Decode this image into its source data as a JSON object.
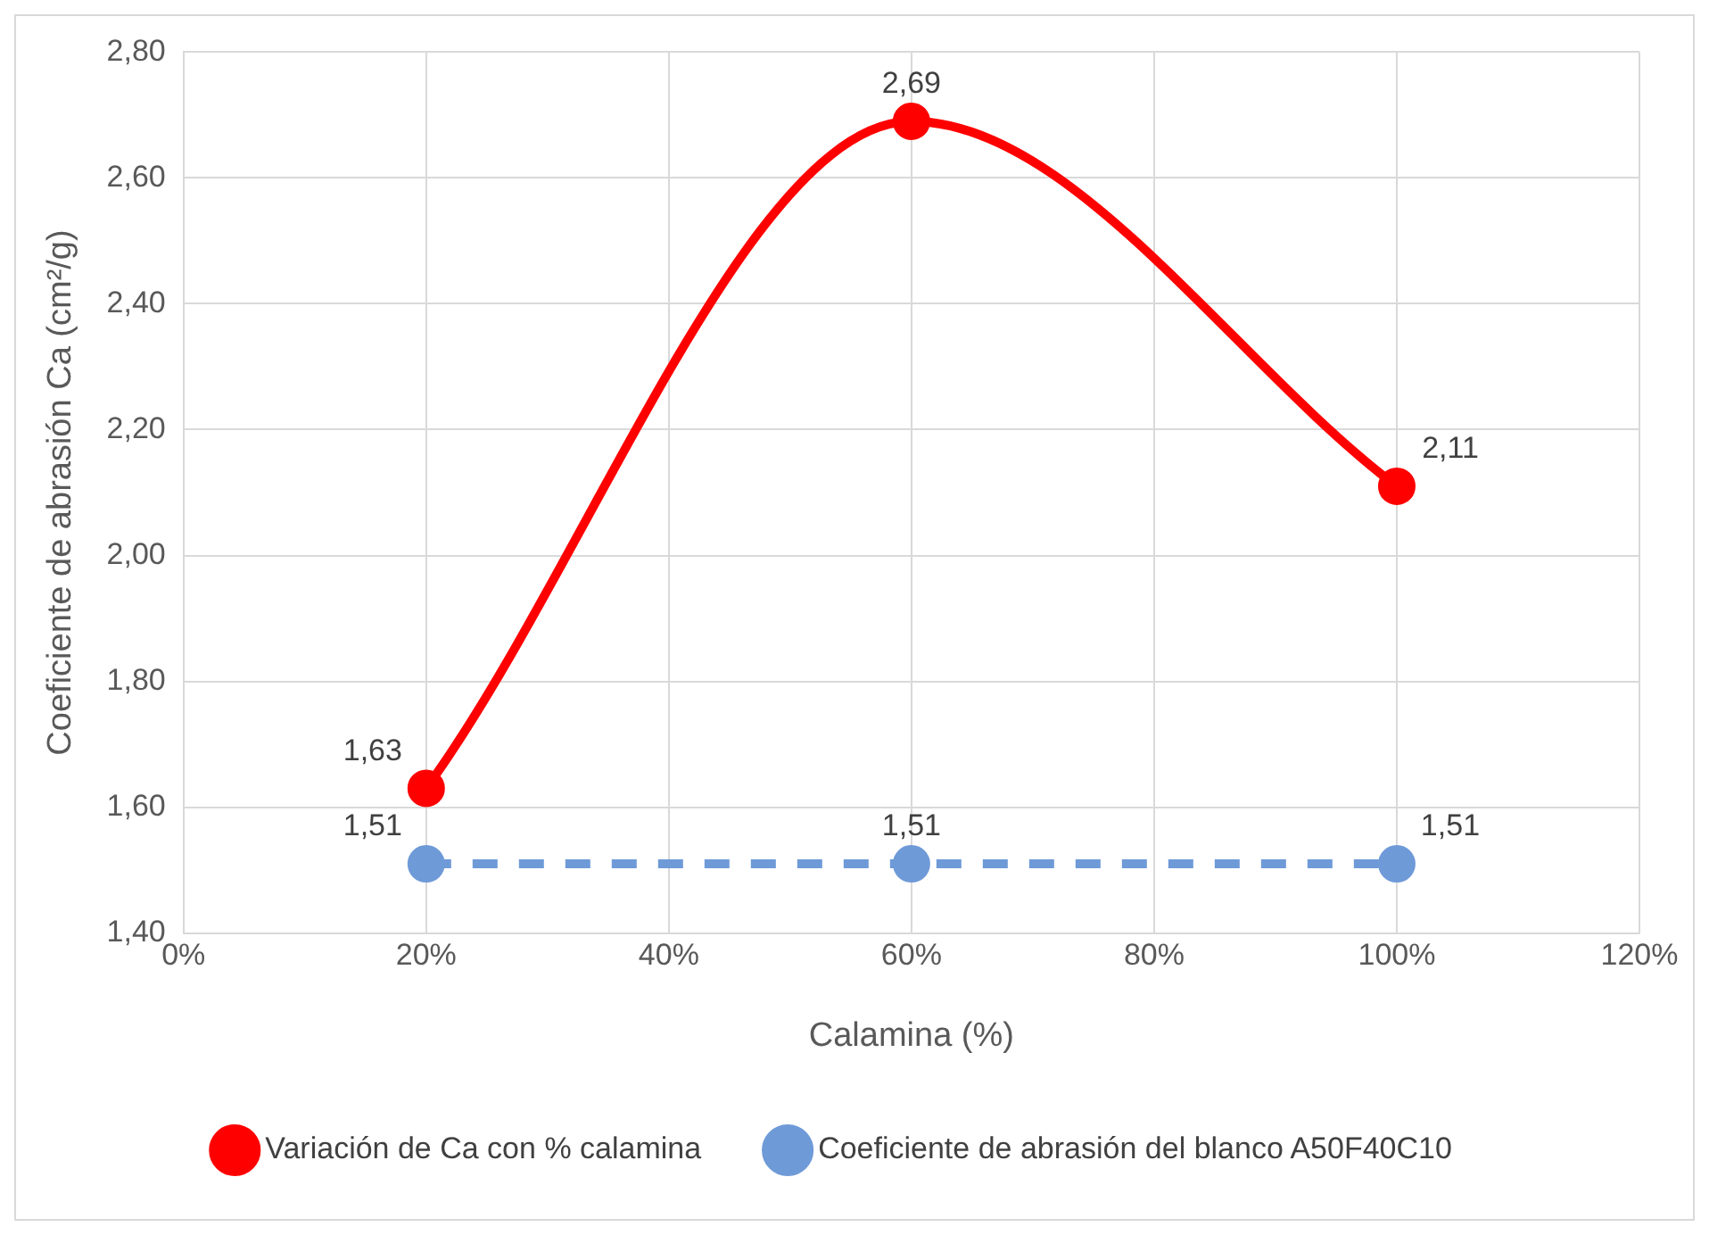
{
  "chart_data": {
    "type": "scatter",
    "xlabel": "Calamina (%)",
    "ylabel": "Coeficiente de abrasión Ca (cm²/g)",
    "x": [
      20,
      60,
      100
    ],
    "series": [
      {
        "name": "Variación de Ca con % calamina",
        "color": "#ff0000",
        "type": "line",
        "line_style": "solid",
        "values": [
          1.63,
          2.69,
          2.11
        ],
        "value_labels": [
          "1,63",
          "2,69",
          "2,11"
        ]
      },
      {
        "name": "Coeficiente de abrasión del blanco A50F40C10",
        "color": "#6f9ad8",
        "type": "line",
        "line_style": "dashed",
        "values": [
          1.51,
          1.51,
          1.51
        ],
        "value_labels": [
          "1,51",
          "1,51",
          "1,51"
        ]
      }
    ],
    "xlim": [
      0,
      120
    ],
    "xticks": [
      {
        "value": 0,
        "label": "0%"
      },
      {
        "value": 20,
        "label": "20%"
      },
      {
        "value": 40,
        "label": "40%"
      },
      {
        "value": 60,
        "label": "60%"
      },
      {
        "value": 80,
        "label": "80%"
      },
      {
        "value": 100,
        "label": "100%"
      },
      {
        "value": 120,
        "label": "120%"
      }
    ],
    "ylim": [
      1.4,
      2.8
    ],
    "yticks": [
      {
        "value": 1.4,
        "label": "1,40"
      },
      {
        "value": 1.6,
        "label": "1,60"
      },
      {
        "value": 1.8,
        "label": "1,80"
      },
      {
        "value": 2.0,
        "label": "2,00"
      },
      {
        "value": 2.2,
        "label": "2,20"
      },
      {
        "value": 2.4,
        "label": "2,40"
      },
      {
        "value": 2.6,
        "label": "2,60"
      },
      {
        "value": 2.8,
        "label": "2,80"
      }
    ],
    "grid": true,
    "legend": "bottom",
    "marker": "circle"
  }
}
